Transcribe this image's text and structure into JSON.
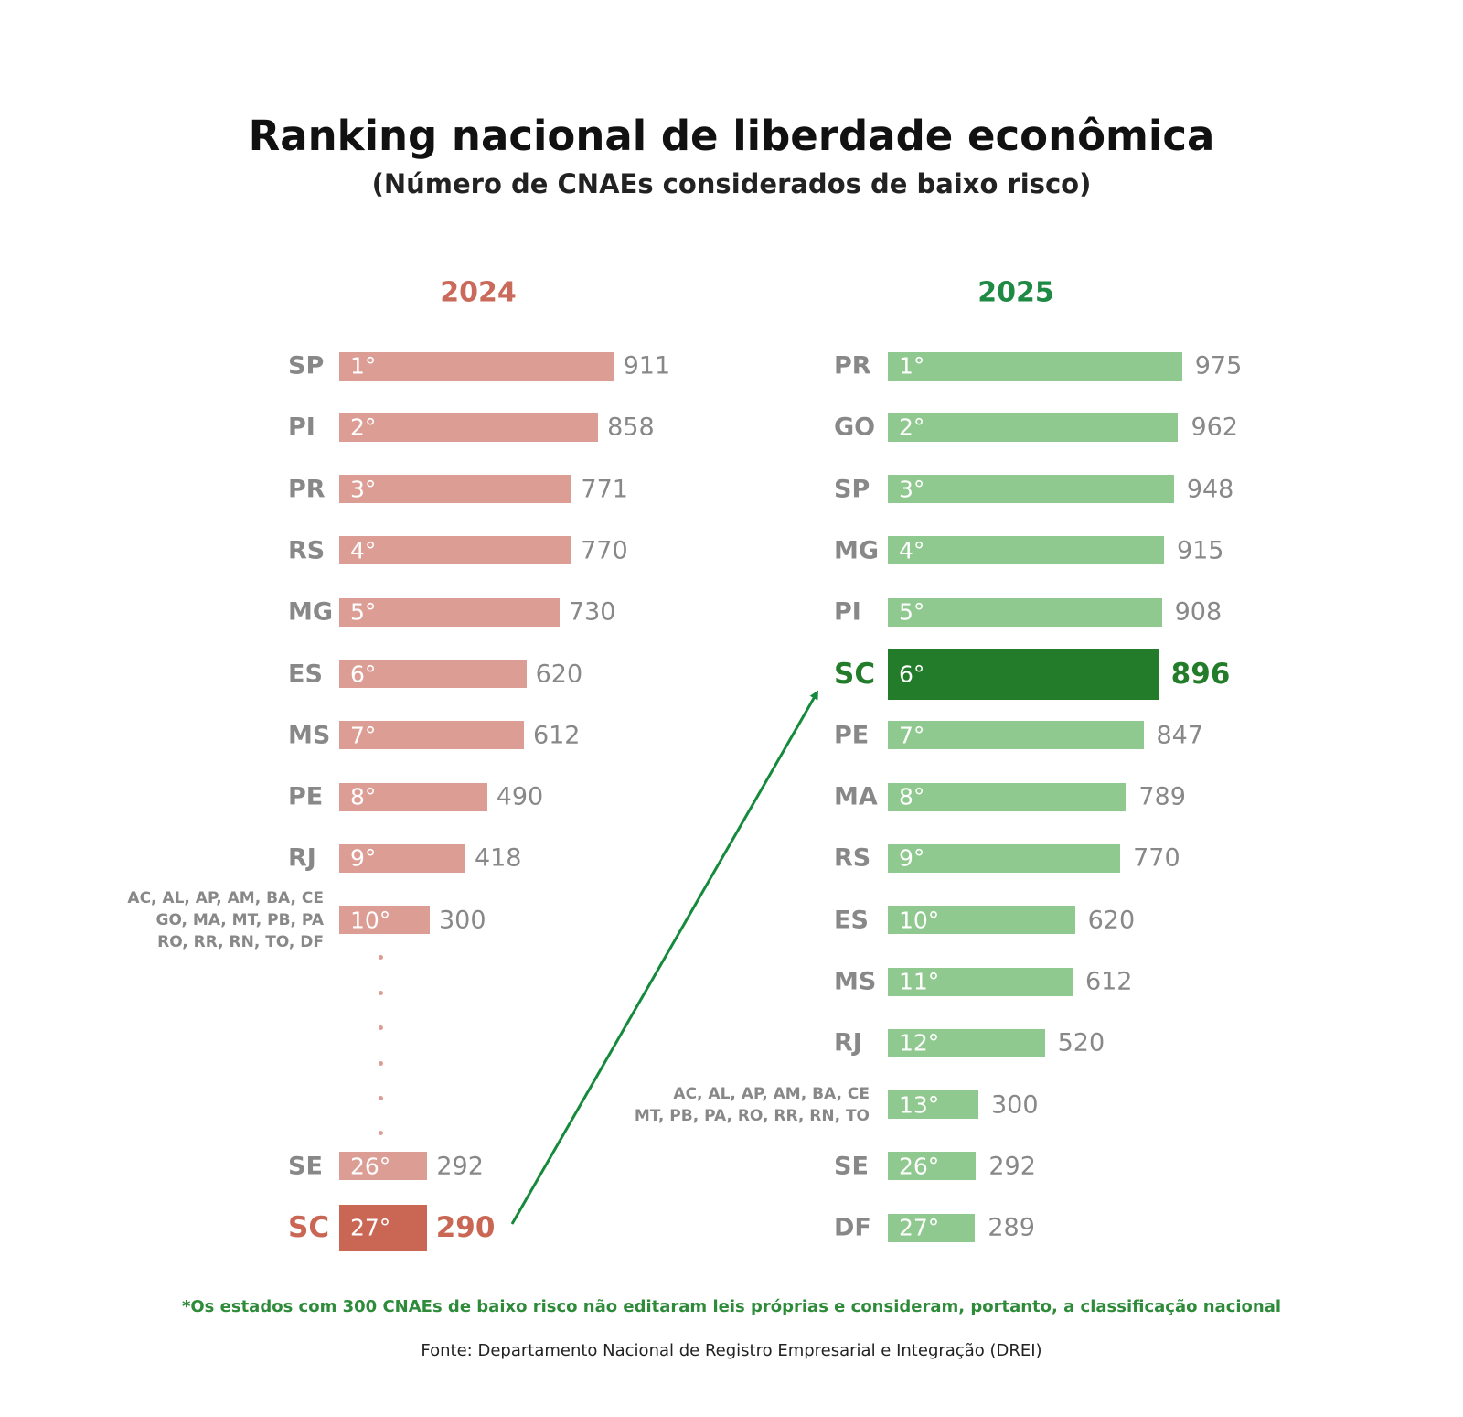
{
  "title": "Ranking nacional de liberdade econômica",
  "subtitle": "(Número de CNAEs considerados de baixo risco)",
  "note": "*Os estados com 300 CNAEs de baixo risco não editaram leis próprias e consideram, portanto, a classificação nacional",
  "source": "Fonte:  Departamento Nacional de Registro Empresarial e Integração (DREI)",
  "chart_data": [
    {
      "type": "bar",
      "orientation": "horizontal",
      "title": "2024",
      "title_color": "#c96a5a",
      "color": "#dc9d94",
      "highlight": 11,
      "highlight_color": "#c96654",
      "break_after": 9,
      "categories": [
        "SP",
        "PI",
        "PR",
        "RS",
        "MG",
        "ES",
        "MS",
        "PE",
        "RJ",
        "AC, AL, AP, AM, BA, CE\nGO, MA, MT, PB, PA\nRO, RR, RN, TO, DF",
        "SE",
        "SC"
      ],
      "rank_labels": [
        "1°",
        "2°",
        "3°",
        "4°",
        "5°",
        "6°",
        "7°",
        "8°",
        "9°",
        "10°",
        "26°",
        "27°"
      ],
      "values": [
        911,
        858,
        771,
        770,
        730,
        620,
        612,
        490,
        418,
        300,
        292,
        290
      ]
    },
    {
      "type": "bar",
      "orientation": "horizontal",
      "title": "2025",
      "title_color": "#1f8a44",
      "color": "#8fc98f",
      "highlight": 5,
      "highlight_color": "#237c29",
      "categories": [
        "PR",
        "GO",
        "SP",
        "MG",
        "PI",
        "SC",
        "PE",
        "MA",
        "RS",
        "ES",
        "MS",
        "RJ",
        "AC, AL, AP, AM, BA, CE\nMT, PB, PA, RO, RR, RN, TO",
        "SE",
        "DF"
      ],
      "rank_labels": [
        "1°",
        "2°",
        "3°",
        "4°",
        "5°",
        "6°",
        "7°",
        "8°",
        "9°",
        "10°",
        "11°",
        "12°",
        "13°",
        "26°",
        "27°"
      ],
      "values": [
        975,
        962,
        948,
        915,
        908,
        896,
        847,
        789,
        770,
        620,
        612,
        520,
        300,
        292,
        289
      ]
    }
  ]
}
